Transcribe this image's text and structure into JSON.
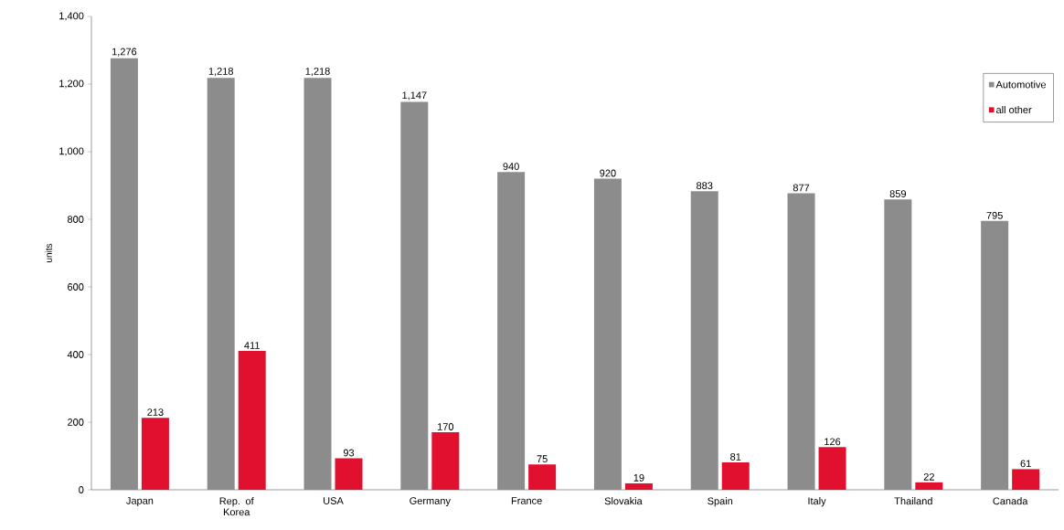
{
  "chart_data": {
    "type": "bar",
    "ylabel": "units",
    "categories": [
      "Japan",
      "Rep. of Korea",
      "USA",
      "Germany",
      "France",
      "Slovakia",
      "Spain",
      "Italy",
      "Thailand",
      "Canada"
    ],
    "series": [
      {
        "name": "Automotive",
        "color": "#8c8c8c",
        "values": [
          1276,
          1218,
          1218,
          1147,
          940,
          920,
          883,
          877,
          859,
          795
        ],
        "value_labels": [
          "1,276",
          "1,218",
          "1,218",
          "1,147",
          "940",
          "920",
          "883",
          "877",
          "859",
          "795"
        ]
      },
      {
        "name": "all other",
        "color": "#e0102e",
        "values": [
          213,
          411,
          93,
          170,
          75,
          19,
          81,
          126,
          22,
          61
        ],
        "value_labels": [
          "213",
          "411",
          "93",
          "170",
          "75",
          "19",
          "81",
          "126",
          "22",
          "61"
        ]
      }
    ],
    "ylim": [
      0,
      1400
    ],
    "yticks": [
      0,
      200,
      400,
      600,
      800,
      {
        "value": 1000,
        "label": "1,000"
      },
      {
        "value": 1200,
        "label": "1,200"
      },
      {
        "value": 1400,
        "label": "1,400"
      }
    ],
    "legend": "top right"
  }
}
